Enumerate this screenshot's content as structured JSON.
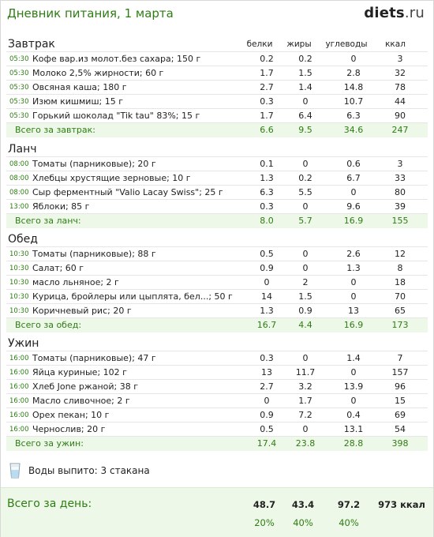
{
  "app": {
    "title": "Дневник питания, 1 марта",
    "brand": "diets",
    "brand_tld": ".ru"
  },
  "columns": {
    "protein": "белки",
    "fat": "жиры",
    "carbs": "углеводы",
    "kcal": "ккал"
  },
  "meals": [
    {
      "name": "Завтрак",
      "items": [
        {
          "time": "05:30",
          "food": "Кофе вар.из молот.без сахара; 150 г",
          "p": "0.2",
          "f": "0.2",
          "c": "0",
          "k": "3"
        },
        {
          "time": "05:30",
          "food": "Молоко 2,5% жирности; 60 г",
          "p": "1.7",
          "f": "1.5",
          "c": "2.8",
          "k": "32"
        },
        {
          "time": "05:30",
          "food": "Овсяная каша; 180 г",
          "p": "2.7",
          "f": "1.4",
          "c": "14.8",
          "k": "78"
        },
        {
          "time": "05:30",
          "food": "Изюм кишмиш; 15 г",
          "p": "0.3",
          "f": "0",
          "c": "10.7",
          "k": "44"
        },
        {
          "time": "05:30",
          "food": "Горький шоколад \"Tik tau\" 83%; 15 г",
          "p": "1.7",
          "f": "6.4",
          "c": "6.3",
          "k": "90"
        }
      ],
      "total": {
        "label": "Всего за завтрак:",
        "p": "6.6",
        "f": "9.5",
        "c": "34.6",
        "k": "247"
      }
    },
    {
      "name": "Ланч",
      "items": [
        {
          "time": "08:00",
          "food": "Томаты (парниковые); 20 г",
          "p": "0.1",
          "f": "0",
          "c": "0.6",
          "k": "3"
        },
        {
          "time": "08:00",
          "food": "Хлебцы хрустящие зерновые; 10 г",
          "p": "1.3",
          "f": "0.2",
          "c": "6.7",
          "k": "33"
        },
        {
          "time": "08:00",
          "food": "Сыр ферментный \"Valio Lacay Swiss\"; 25 г",
          "p": "6.3",
          "f": "5.5",
          "c": "0",
          "k": "80"
        },
        {
          "time": "13:00",
          "food": "Яблоки; 85 г",
          "p": "0.3",
          "f": "0",
          "c": "9.6",
          "k": "39"
        }
      ],
      "total": {
        "label": "Всего за ланч:",
        "p": "8.0",
        "f": "5.7",
        "c": "16.9",
        "k": "155"
      }
    },
    {
      "name": "Обед",
      "items": [
        {
          "time": "10:30",
          "food": "Томаты (парниковые); 88 г",
          "p": "0.5",
          "f": "0",
          "c": "2.6",
          "k": "12"
        },
        {
          "time": "10:30",
          "food": "Салат; 60 г",
          "p": "0.9",
          "f": "0",
          "c": "1.3",
          "k": "8"
        },
        {
          "time": "10:30",
          "food": "масло льняное; 2 г",
          "p": "0",
          "f": "2",
          "c": "0",
          "k": "18"
        },
        {
          "time": "10:30",
          "food": "Курица, бройлеры или цыплята, бел...; 50 г",
          "p": "14",
          "f": "1.5",
          "c": "0",
          "k": "70"
        },
        {
          "time": "10:30",
          "food": "Коричневый рис; 20 г",
          "p": "1.3",
          "f": "0.9",
          "c": "13",
          "k": "65"
        }
      ],
      "total": {
        "label": "Всего за обед:",
        "p": "16.7",
        "f": "4.4",
        "c": "16.9",
        "k": "173"
      }
    },
    {
      "name": "Ужин",
      "items": [
        {
          "time": "16:00",
          "food": "Томаты (парниковые); 47 г",
          "p": "0.3",
          "f": "0",
          "c": "1.4",
          "k": "7"
        },
        {
          "time": "16:00",
          "food": "Яйца куриные; 102 г",
          "p": "13",
          "f": "11.7",
          "c": "0",
          "k": "157"
        },
        {
          "time": "16:00",
          "food": "Хлеб Jone ржаной; 38 г",
          "p": "2.7",
          "f": "3.2",
          "c": "13.9",
          "k": "96"
        },
        {
          "time": "16:00",
          "food": "Масло сливочное; 2 г",
          "p": "0",
          "f": "1.7",
          "c": "0",
          "k": "15"
        },
        {
          "time": "16:00",
          "food": "Орех пекан; 10 г",
          "p": "0.9",
          "f": "7.2",
          "c": "0.4",
          "k": "69"
        },
        {
          "time": "16:00",
          "food": "Чернослив; 20 г",
          "p": "0.5",
          "f": "0",
          "c": "13.1",
          "k": "54"
        }
      ],
      "total": {
        "label": "Всего за ужин:",
        "p": "17.4",
        "f": "23.8",
        "c": "28.8",
        "k": "398"
      }
    }
  ],
  "water": {
    "text": "Воды выпито: 3 стакана",
    "icon": "water-glass-icon"
  },
  "day_total": {
    "label": "Всего за день:",
    "p": "48.7",
    "f": "43.4",
    "c": "97.2",
    "kcal": "973 ккал",
    "p_pct": "20%",
    "f_pct": "40%",
    "c_pct": "40%"
  },
  "colors": {
    "accent": "#2e7d14",
    "total_bg": "#eef8e8"
  }
}
